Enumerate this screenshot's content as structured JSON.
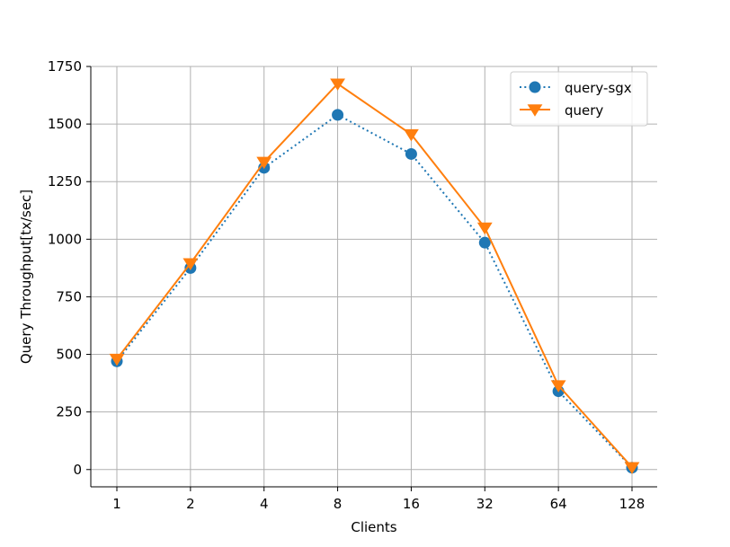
{
  "chart_data": {
    "type": "line",
    "categories": [
      "1",
      "2",
      "4",
      "8",
      "16",
      "32",
      "64",
      "128"
    ],
    "series": [
      {
        "name": "query-sgx",
        "values": [
          470,
          875,
          1310,
          1540,
          1370,
          985,
          340,
          8
        ],
        "color": "#1f77b4",
        "line_style": "dotted",
        "marker": "circle"
      },
      {
        "name": "query",
        "values": [
          480,
          895,
          1335,
          1675,
          1455,
          1050,
          365,
          10
        ],
        "color": "#ff7f0e",
        "line_style": "solid",
        "marker": "triangle-down"
      }
    ],
    "title": "",
    "xlabel": "Clients",
    "ylabel": "Query Throughput[tx/sec]",
    "ylim": [
      -75,
      1750
    ],
    "yticks": [
      0,
      250,
      500,
      750,
      1000,
      1250,
      1500,
      1750
    ],
    "grid": true,
    "legend_position": "top-right"
  }
}
